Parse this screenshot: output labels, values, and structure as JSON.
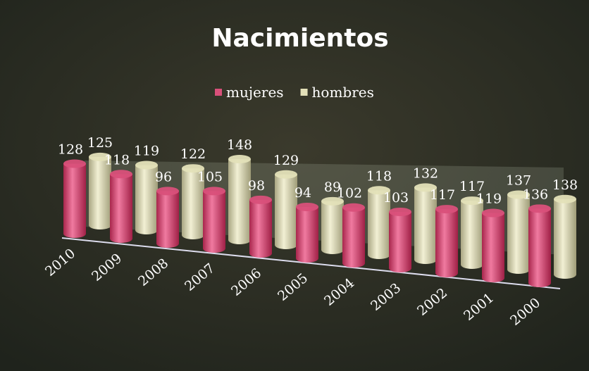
{
  "chart_data": {
    "type": "bar3d",
    "title": "Nacimientos",
    "categories": [
      "2010",
      "2009",
      "2008",
      "2007",
      "2006",
      "2005",
      "2004",
      "2003",
      "2002",
      "2001",
      "2000"
    ],
    "series": [
      {
        "name": "mujeres",
        "color": "#d9507a",
        "values": [
          128,
          118,
          96,
          105,
          98,
          94,
          102,
          103,
          117,
          119,
          136
        ]
      },
      {
        "name": "hombres",
        "color": "#e3e0b8",
        "values": [
          125,
          119,
          122,
          148,
          129,
          89,
          118,
          132,
          117,
          137,
          138
        ]
      }
    ],
    "legend": "top"
  }
}
